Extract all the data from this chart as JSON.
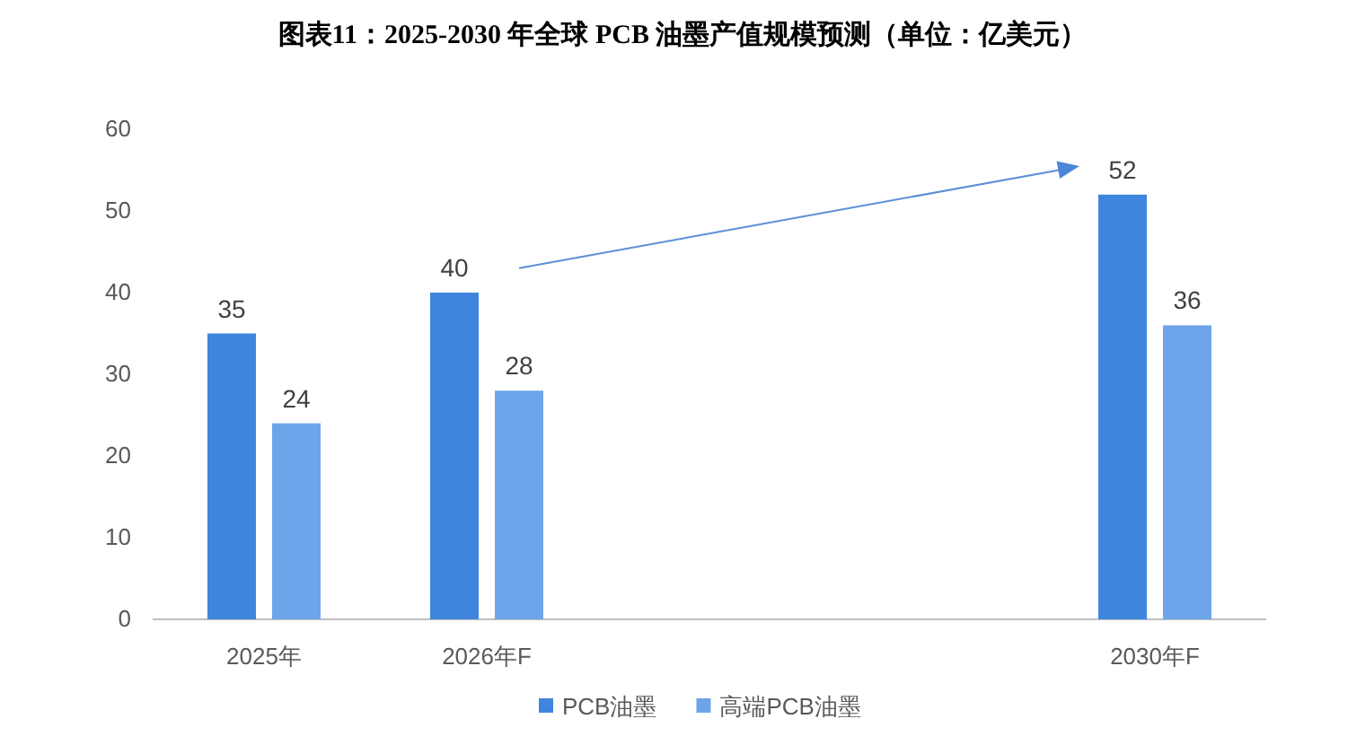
{
  "chart_data": {
    "type": "bar",
    "title": "图表11：2025-2030 年全球 PCB 油墨产值规模预测（单位：亿美元）",
    "categories": [
      "2025年",
      "2026年F",
      null,
      null,
      "2030年F"
    ],
    "series": [
      {
        "name": "PCB油墨",
        "color": "#3f85dd",
        "values": [
          35,
          40,
          null,
          null,
          52
        ]
      },
      {
        "name": "高端PCB油墨",
        "color": "#6ea5ea",
        "values": [
          24,
          28,
          null,
          null,
          36
        ]
      }
    ],
    "ylim": [
      0,
      60
    ],
    "yticks": [
      0,
      10,
      20,
      30,
      40,
      50,
      60
    ],
    "grid": false,
    "data_labels": true,
    "legend": "bottom"
  }
}
